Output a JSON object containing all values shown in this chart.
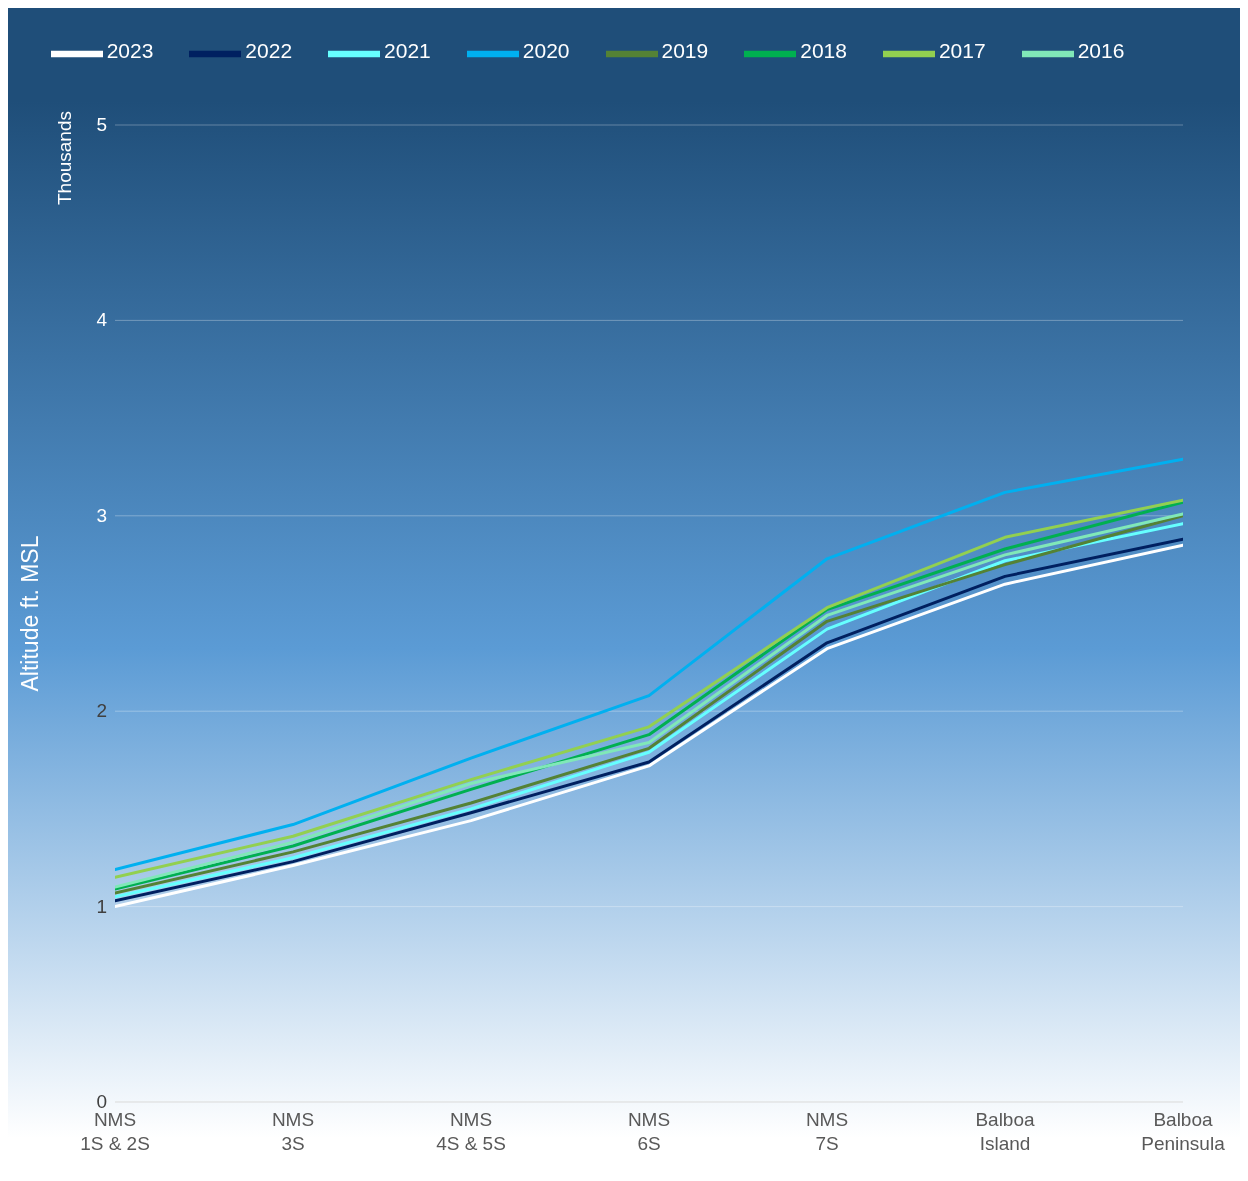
{
  "chart_data": {
    "type": "line",
    "ylabel": "Altitude ft. MSL",
    "annotations": [
      "Thousands"
    ],
    "categories": [
      "NMS 1S & 2S",
      "NMS 3S",
      "NMS 4S & 5S",
      "NMS 6S",
      "NMS 7S",
      "Balboa Island",
      "Balboa Peninsula"
    ],
    "series": [
      {
        "name": "2023",
        "color": "#ffffff",
        "values": [
          1.0,
          1.21,
          1.44,
          1.72,
          2.32,
          2.65,
          2.85
        ]
      },
      {
        "name": "2022",
        "color": "#002060",
        "values": [
          1.03,
          1.23,
          1.48,
          1.74,
          2.35,
          2.69,
          2.88
        ]
      },
      {
        "name": "2021",
        "color": "#66ffff",
        "values": [
          1.05,
          1.25,
          1.5,
          1.79,
          2.42,
          2.77,
          2.96
        ]
      },
      {
        "name": "2020",
        "color": "#00b0f0",
        "values": [
          1.19,
          1.42,
          1.76,
          2.08,
          2.78,
          3.12,
          3.29
        ]
      },
      {
        "name": "2019",
        "color": "#548235",
        "values": [
          1.07,
          1.28,
          1.53,
          1.81,
          2.46,
          2.75,
          3.0
        ]
      },
      {
        "name": "2018",
        "color": "#00b050",
        "values": [
          1.09,
          1.31,
          1.6,
          1.88,
          2.52,
          2.83,
          3.07
        ]
      },
      {
        "name": "2017",
        "color": "#92d050",
        "values": [
          1.15,
          1.36,
          1.65,
          1.92,
          2.53,
          2.89,
          3.08
        ]
      },
      {
        "name": "2016",
        "color": "#80e8b8",
        "values": [
          1.1,
          1.33,
          1.63,
          1.84,
          2.49,
          2.8,
          3.01
        ]
      }
    ],
    "ylim": [
      0,
      5
    ],
    "yticks": [
      0,
      1,
      2,
      3,
      4,
      5
    ],
    "grid": "y",
    "legend": "top",
    "marker": "none",
    "line_style": "solid"
  }
}
